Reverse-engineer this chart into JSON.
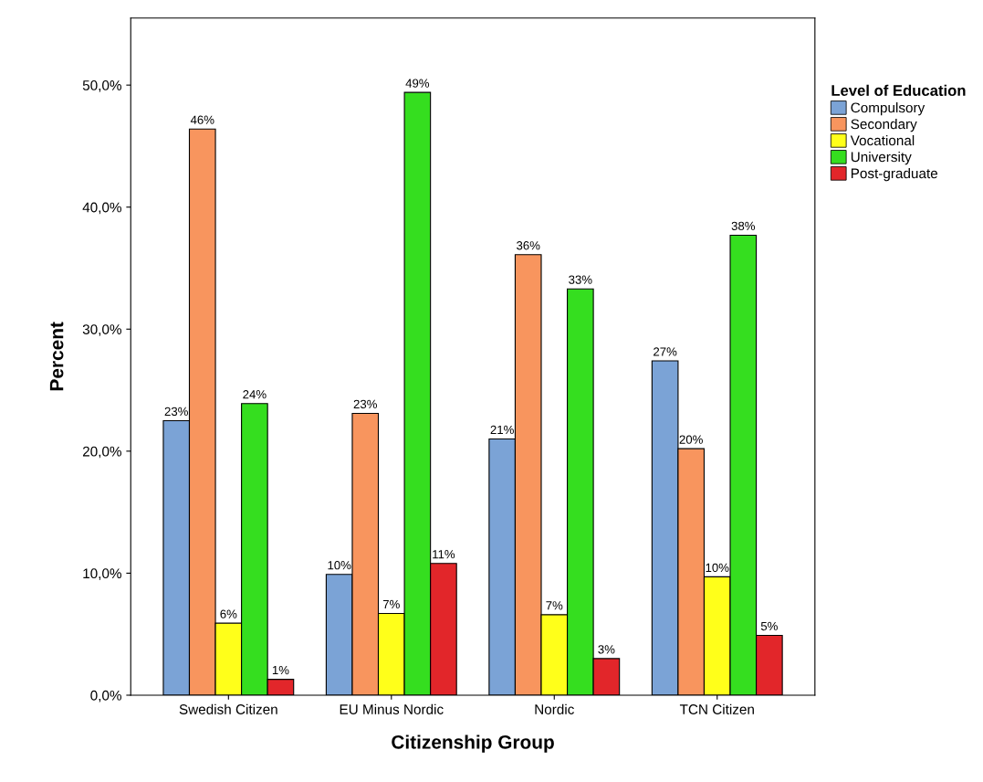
{
  "chart_data": {
    "type": "bar",
    "xlabel": "Citizenship Group",
    "ylabel": "Percent",
    "legend_title": "Level of Education",
    "categories": [
      "Swedish Citizen",
      "EU Minus Nordic",
      "Nordic",
      "TCN Citizen"
    ],
    "series": [
      {
        "name": "Compulsory",
        "color": "#7ba3d6",
        "values": [
          22.5,
          9.9,
          21.0,
          27.4
        ],
        "value_labels": [
          "23%",
          "10%",
          "21%",
          "27%"
        ]
      },
      {
        "name": "Secondary",
        "color": "#f8955e",
        "values": [
          46.4,
          23.1,
          36.1,
          20.2
        ],
        "value_labels": [
          "46%",
          "23%",
          "36%",
          "20%"
        ]
      },
      {
        "name": "Vocational",
        "color": "#ffff1a",
        "values": [
          5.9,
          6.7,
          6.6,
          9.7
        ],
        "value_labels": [
          "6%",
          "7%",
          "7%",
          "10%"
        ]
      },
      {
        "name": "University",
        "color": "#35de1f",
        "values": [
          23.9,
          49.4,
          33.3,
          37.7
        ],
        "value_labels": [
          "24%",
          "49%",
          "33%",
          "38%"
        ]
      },
      {
        "name": "Post-graduate",
        "color": "#e2262a",
        "values": [
          1.3,
          10.8,
          3.0,
          4.9
        ],
        "value_labels": [
          "1%",
          "11%",
          "3%",
          "5%"
        ]
      }
    ],
    "ylim": [
      0,
      55.5
    ],
    "yticks": [
      {
        "value": 0,
        "label": "0,0%"
      },
      {
        "value": 10,
        "label": "10,0%"
      },
      {
        "value": 20,
        "label": "20,0%"
      },
      {
        "value": 30,
        "label": "30,0%"
      },
      {
        "value": 40,
        "label": "40,0%"
      },
      {
        "value": 50,
        "label": "50,0%"
      }
    ],
    "grid": false,
    "legend": "right"
  }
}
